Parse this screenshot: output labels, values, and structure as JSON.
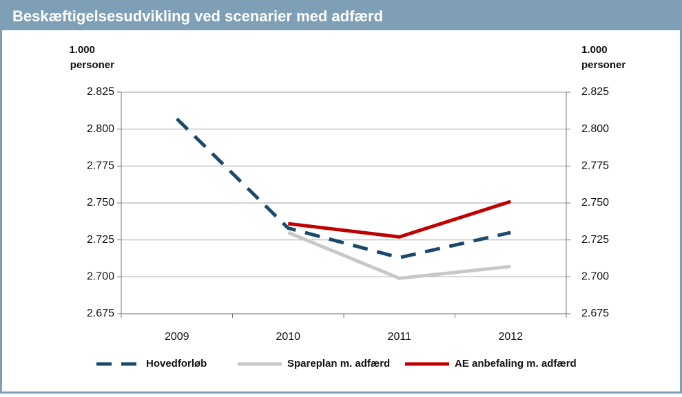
{
  "chart_data": {
    "type": "line",
    "title": "Beskæftigelsesudvikling ved scenarier med adfærd",
    "y_label": [
      "1.000",
      "personer"
    ],
    "y2_label": [
      "1.000",
      "personer"
    ],
    "categories": [
      "2009",
      "2010",
      "2011",
      "2012"
    ],
    "series": [
      {
        "name": "Hovedforløb",
        "color": "#1c4a6c",
        "dash": true,
        "values": [
          2807,
          2733,
          2713,
          2730
        ]
      },
      {
        "name": "Spareplan m. adfærd",
        "color": "#c8c8c8",
        "values": [
          null,
          2730,
          2699,
          2707
        ]
      },
      {
        "name": "AE anbefaling m. adfærd",
        "color": "#c00000",
        "values": [
          null,
          2736,
          2727,
          2751
        ]
      }
    ],
    "ylim": [
      2675,
      2825
    ],
    "yticks": [
      {
        "value": 2675,
        "label": "2.675"
      },
      {
        "value": 2700,
        "label": "2.700"
      },
      {
        "value": 2725,
        "label": "2.725"
      },
      {
        "value": 2750,
        "label": "2.750"
      },
      {
        "value": 2775,
        "label": "2.775"
      },
      {
        "value": 2800,
        "label": "2.800"
      },
      {
        "value": 2825,
        "label": "2.825"
      }
    ],
    "y2lim": [
      2675,
      2825
    ],
    "y2ticks": [
      {
        "value": 2675,
        "label": "2.675"
      },
      {
        "value": 2700,
        "label": "2.700"
      },
      {
        "value": 2725,
        "label": "2.725"
      },
      {
        "value": 2750,
        "label": "2.750"
      },
      {
        "value": 2775,
        "label": "2.775"
      },
      {
        "value": 2800,
        "label": "2.800"
      },
      {
        "value": 2825,
        "label": "2.825"
      }
    ],
    "grid": true,
    "legend": "bottom"
  }
}
